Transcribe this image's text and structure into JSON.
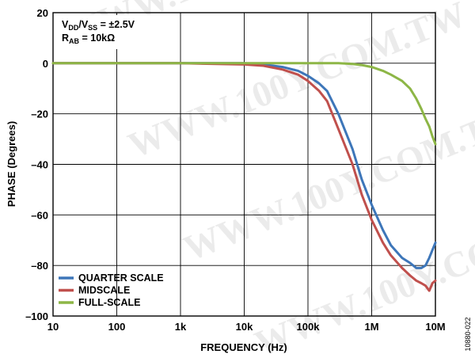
{
  "chart_data": {
    "type": "line",
    "xlabel": "FREQUENCY (Hz)",
    "ylabel": "PHASE (Degrees)",
    "xscale": "log",
    "xlim": [
      10,
      10000000
    ],
    "ylim": [
      -100,
      20
    ],
    "x_ticks": [
      "10",
      "100",
      "1k",
      "10k",
      "100k",
      "1M",
      "10M"
    ],
    "y_ticks": [
      "20",
      "0",
      "–20",
      "–40",
      "–60",
      "–80",
      "–100"
    ],
    "grid": true,
    "legend_position": "bottom-left",
    "annotation": {
      "line1_main": "V",
      "line1_sub1": "DD",
      "line1_mid": "/V",
      "line1_sub2": "SS",
      "line1_end": " = ±2.5V",
      "line2_main": "R",
      "line2_sub": "AB",
      "line2_end": " = 10kΩ"
    },
    "series": [
      {
        "name": "QUARTER SCALE",
        "color": "#3d76b9",
        "points": [
          [
            10,
            0
          ],
          [
            100,
            0
          ],
          [
            1000,
            0
          ],
          [
            10000,
            0
          ],
          [
            20000,
            -0.5
          ],
          [
            40000,
            -1.5
          ],
          [
            70000,
            -3
          ],
          [
            100000,
            -5
          ],
          [
            150000,
            -8
          ],
          [
            200000,
            -11
          ],
          [
            300000,
            -20
          ],
          [
            500000,
            -34
          ],
          [
            700000,
            -46
          ],
          [
            1000000,
            -56
          ],
          [
            1500000,
            -66
          ],
          [
            2000000,
            -72
          ],
          [
            3000000,
            -77
          ],
          [
            4000000,
            -79
          ],
          [
            5000000,
            -81
          ],
          [
            6000000,
            -81
          ],
          [
            7000000,
            -80
          ],
          [
            8000000,
            -77
          ],
          [
            10000000,
            -71
          ]
        ]
      },
      {
        "name": "MIDSCALE",
        "color": "#c0504d",
        "points": [
          [
            10,
            0
          ],
          [
            100,
            0
          ],
          [
            1000,
            0
          ],
          [
            10000,
            -0.5
          ],
          [
            20000,
            -1
          ],
          [
            40000,
            -2.5
          ],
          [
            70000,
            -4.5
          ],
          [
            100000,
            -7
          ],
          [
            150000,
            -11
          ],
          [
            200000,
            -15
          ],
          [
            300000,
            -26
          ],
          [
            500000,
            -40
          ],
          [
            700000,
            -52
          ],
          [
            1000000,
            -62
          ],
          [
            1500000,
            -71
          ],
          [
            2000000,
            -76
          ],
          [
            3000000,
            -81
          ],
          [
            4000000,
            -84
          ],
          [
            5000000,
            -86
          ],
          [
            6000000,
            -87
          ],
          [
            7000000,
            -88
          ],
          [
            8000000,
            -90
          ],
          [
            9000000,
            -87
          ],
          [
            10000000,
            -86
          ]
        ]
      },
      {
        "name": "FULL-SCALE",
        "color": "#8db646",
        "points": [
          [
            10,
            0
          ],
          [
            100,
            0
          ],
          [
            1000,
            0
          ],
          [
            10000,
            0
          ],
          [
            100000,
            0
          ],
          [
            300000,
            0
          ],
          [
            500000,
            -0.3
          ],
          [
            700000,
            -0.7
          ],
          [
            1000000,
            -1.5
          ],
          [
            1500000,
            -3
          ],
          [
            2000000,
            -4.5
          ],
          [
            3000000,
            -7
          ],
          [
            4000000,
            -10
          ],
          [
            5000000,
            -14
          ],
          [
            6000000,
            -18
          ],
          [
            7000000,
            -22
          ],
          [
            8000000,
            -25
          ],
          [
            9000000,
            -29
          ],
          [
            10000000,
            -32
          ]
        ]
      }
    ]
  },
  "figure_id": "10880-022",
  "watermark": "WWW.100Y.COM.TW"
}
